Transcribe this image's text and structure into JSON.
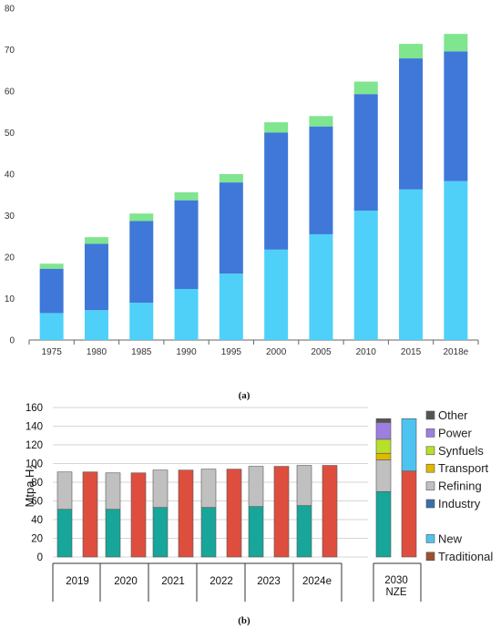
{
  "chart_data": [
    {
      "panel": "a",
      "type": "bar",
      "stacked": true,
      "categories": [
        "1975",
        "1980",
        "1985",
        "1990",
        "1995",
        "2000",
        "2005",
        "2010",
        "2015",
        "2018e"
      ],
      "series": [
        {
          "key": "s1",
          "color": "#4fd0f8",
          "values": [
            6.5,
            7.2,
            9.0,
            12.3,
            16.0,
            21.8,
            25.5,
            31.2,
            36.3,
            38.3
          ]
        },
        {
          "key": "s2",
          "color": "#3f78d8",
          "values": [
            10.7,
            16.0,
            19.7,
            21.4,
            22.0,
            28.2,
            26.0,
            28.1,
            31.6,
            31.3
          ]
        },
        {
          "key": "s3",
          "color": "#7fe58e",
          "values": [
            1.2,
            1.6,
            1.8,
            1.9,
            2.0,
            2.5,
            2.5,
            3.0,
            3.5,
            4.2
          ]
        }
      ],
      "ylim": [
        0,
        80
      ],
      "yticks": [
        0,
        10,
        20,
        30,
        40,
        50,
        60,
        70,
        80
      ],
      "grid": false,
      "caption": "(a)"
    },
    {
      "panel": "b",
      "type": "bar",
      "stacked": true,
      "ylabel": "Mtpa H",
      "ylabel_sub": "2",
      "ylim": [
        0,
        160
      ],
      "yticks": [
        0,
        20,
        40,
        60,
        80,
        100,
        120,
        140,
        160
      ],
      "grid": true,
      "legend_position": "right",
      "groups": [
        "2019",
        "2020",
        "2021",
        "2022",
        "2023",
        "2024e",
        "2030\nNZE"
      ],
      "legend": [
        {
          "label": "Other",
          "color": "#555555"
        },
        {
          "label": "Power",
          "color": "#9e7fe0"
        },
        {
          "label": "Synfuels",
          "color": "#b8e02a"
        },
        {
          "label": "Transport",
          "color": "#e0b800"
        },
        {
          "label": "Refining",
          "color": "#c0c0c0"
        },
        {
          "label": "Industry",
          "color": "#3a6fa8"
        },
        {
          "label": "New",
          "color": "#4fc3f0"
        },
        {
          "label": "Traditional",
          "color": "#9c5230"
        }
      ],
      "bars": [
        {
          "group": 0,
          "kind": "sector",
          "segments": [
            {
              "label": "Industry",
              "value": 51,
              "color": "#18a59a"
            },
            {
              "label": "Refining",
              "value": 40,
              "color": "#c0c0c0"
            }
          ]
        },
        {
          "group": 0,
          "kind": "source",
          "segments": [
            {
              "label": "Traditional",
              "value": 91,
              "color": "#de4e3e"
            }
          ]
        },
        {
          "group": 1,
          "kind": "sector",
          "segments": [
            {
              "label": "Industry",
              "value": 51,
              "color": "#18a59a"
            },
            {
              "label": "Refining",
              "value": 39,
              "color": "#c0c0c0"
            }
          ]
        },
        {
          "group": 1,
          "kind": "source",
          "segments": [
            {
              "label": "Traditional",
              "value": 90,
              "color": "#de4e3e"
            }
          ]
        },
        {
          "group": 2,
          "kind": "sector",
          "segments": [
            {
              "label": "Industry",
              "value": 53,
              "color": "#18a59a"
            },
            {
              "label": "Refining",
              "value": 40,
              "color": "#c0c0c0"
            }
          ]
        },
        {
          "group": 2,
          "kind": "source",
          "segments": [
            {
              "label": "Traditional",
              "value": 93,
              "color": "#de4e3e"
            }
          ]
        },
        {
          "group": 3,
          "kind": "sector",
          "segments": [
            {
              "label": "Industry",
              "value": 53,
              "color": "#18a59a"
            },
            {
              "label": "Refining",
              "value": 41,
              "color": "#c0c0c0"
            }
          ]
        },
        {
          "group": 3,
          "kind": "source",
          "segments": [
            {
              "label": "Traditional",
              "value": 94,
              "color": "#de4e3e"
            }
          ]
        },
        {
          "group": 4,
          "kind": "sector",
          "segments": [
            {
              "label": "Industry",
              "value": 54,
              "color": "#18a59a"
            },
            {
              "label": "Refining",
              "value": 43,
              "color": "#c0c0c0"
            }
          ]
        },
        {
          "group": 4,
          "kind": "source",
          "segments": [
            {
              "label": "Traditional",
              "value": 97,
              "color": "#de4e3e"
            }
          ]
        },
        {
          "group": 5,
          "kind": "sector",
          "segments": [
            {
              "label": "Industry",
              "value": 55,
              "color": "#18a59a"
            },
            {
              "label": "Refining",
              "value": 43,
              "color": "#c0c0c0"
            }
          ]
        },
        {
          "group": 5,
          "kind": "source",
          "segments": [
            {
              "label": "Traditional",
              "value": 98,
              "color": "#de4e3e"
            }
          ]
        },
        {
          "group": 6,
          "kind": "sector",
          "segments": [
            {
              "label": "Industry",
              "value": 70,
              "color": "#18a59a"
            },
            {
              "label": "Refining",
              "value": 34,
              "color": "#c0c0c0"
            },
            {
              "label": "Transport",
              "value": 7,
              "color": "#e0b800"
            },
            {
              "label": "Synfuels",
              "value": 15,
              "color": "#b8e02a"
            },
            {
              "label": "Power",
              "value": 18,
              "color": "#9e7fe0"
            },
            {
              "label": "Other",
              "value": 4,
              "color": "#555555"
            }
          ]
        },
        {
          "group": 6,
          "kind": "source",
          "segments": [
            {
              "label": "Traditional",
              "value": 92,
              "color": "#de4e3e"
            },
            {
              "label": "New",
              "value": 56,
              "color": "#4fc3f0"
            }
          ]
        }
      ],
      "caption": "(b)"
    }
  ]
}
